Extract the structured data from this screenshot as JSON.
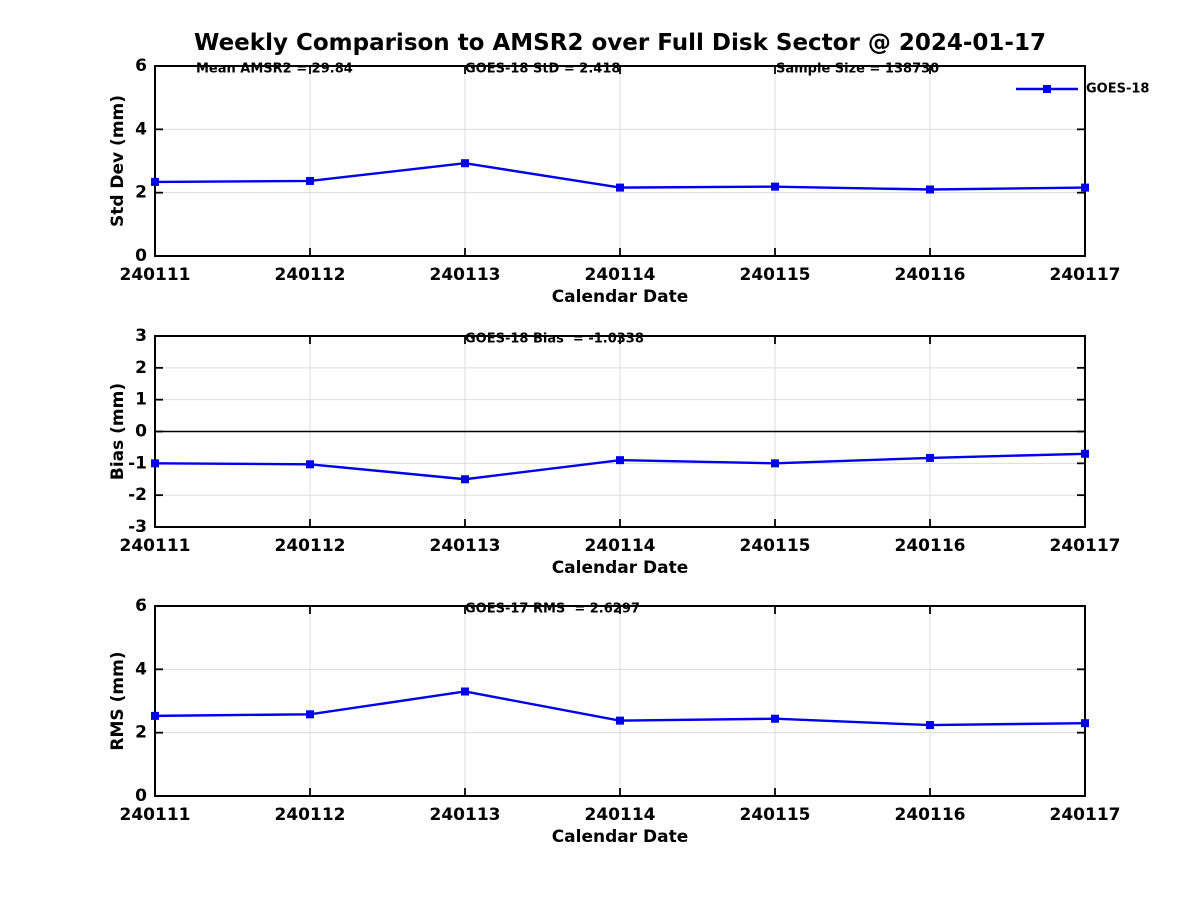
{
  "title": "Weekly Comparison to AMSR2 over Full Disk Sector @ 2024-01-17",
  "colors": {
    "line": "#0000EE",
    "marker": "#0000EE",
    "grid": "#DCDCDC",
    "axis": "#000000",
    "zero_line": "#000000",
    "text": "#000000",
    "background": "#FFFFFF"
  },
  "chart_data": [
    {
      "type": "line",
      "name": "std-dev-subplot",
      "ylabel": "Std Dev (mm)",
      "xlabel": "Calendar Date",
      "categories": [
        "240111",
        "240112",
        "240113",
        "240114",
        "240115",
        "240116",
        "240117"
      ],
      "series": [
        {
          "name": "GOES-18",
          "marker": "square",
          "color": "#0000EE",
          "values": [
            2.34,
            2.37,
            2.93,
            2.16,
            2.19,
            2.1,
            2.16
          ]
        }
      ],
      "ylim": [
        0,
        6
      ],
      "yticks": [
        0,
        2,
        4,
        6
      ],
      "grid": true,
      "annotations": [
        "Mean AMSR2 = 29.84",
        "GOES-18 StD = 2.418",
        "Sample Size = 138730"
      ],
      "legend": {
        "entries": [
          "GOES-18"
        ],
        "position": "top-right"
      }
    },
    {
      "type": "line",
      "name": "bias-subplot",
      "ylabel": "Bias (mm)",
      "xlabel": "Calendar Date",
      "categories": [
        "240111",
        "240112",
        "240113",
        "240114",
        "240115",
        "240116",
        "240117"
      ],
      "series": [
        {
          "name": "GOES-18",
          "marker": "square",
          "color": "#0000EE",
          "values": [
            -1.0,
            -1.03,
            -1.5,
            -0.9,
            -1.0,
            -0.83,
            -0.7
          ]
        }
      ],
      "ylim": [
        -3,
        3
      ],
      "yticks": [
        -3,
        -2,
        -1,
        0,
        1,
        2,
        3
      ],
      "grid": true,
      "zero_line": true,
      "annotations": [
        "GOES-18 Bias  = -1.0338"
      ]
    },
    {
      "type": "line",
      "name": "rms-subplot",
      "ylabel": "RMS (mm)",
      "xlabel": "Calendar Date",
      "categories": [
        "240111",
        "240112",
        "240113",
        "240114",
        "240115",
        "240116",
        "240117"
      ],
      "series": [
        {
          "name": "GOES-18",
          "marker": "square",
          "color": "#0000EE",
          "values": [
            2.53,
            2.58,
            3.3,
            2.38,
            2.44,
            2.24,
            2.3
          ]
        }
      ],
      "ylim": [
        0,
        6
      ],
      "yticks": [
        0,
        2,
        4,
        6
      ],
      "grid": true,
      "annotations": [
        "GOES-17 RMS  = 2.6297"
      ]
    }
  ]
}
